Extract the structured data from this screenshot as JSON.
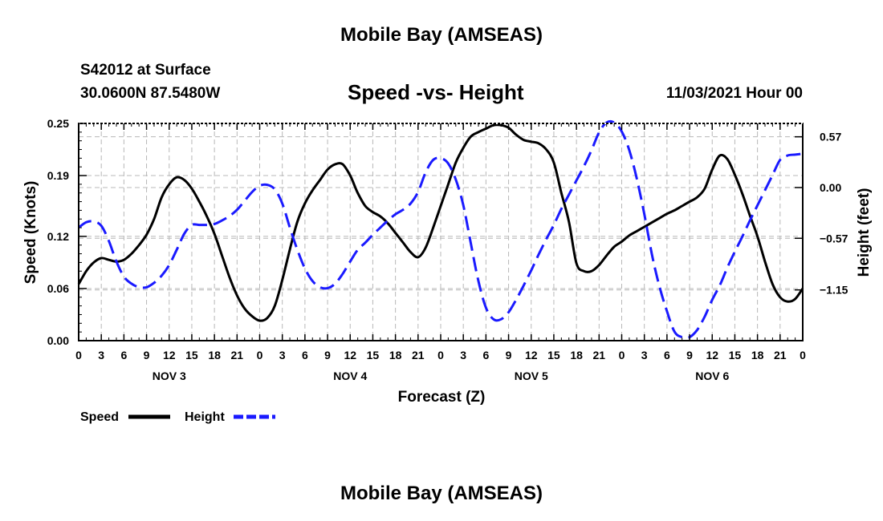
{
  "header": {
    "main_title": "Mobile Bay (AMSEAS)",
    "station": "S42012 at Surface",
    "coords": "30.0600N  87.5480W",
    "subtitle": "Speed -vs- Height",
    "timestamp": "11/03/2021 Hour 00",
    "repeat_title": "Mobile Bay (AMSEAS)"
  },
  "legend": {
    "speed_label": "Speed",
    "height_label": "Height"
  },
  "chart_data": {
    "type": "line",
    "title": "Speed -vs- Height",
    "xlabel": "Forecast (Z)",
    "ylabel_left": "Speed (Knots)",
    "ylabel_right": "Height (feet)",
    "x_hours_range": [
      0,
      96
    ],
    "x_tick_labels": [
      "0",
      "3",
      "6",
      "9",
      "12",
      "15",
      "18",
      "21",
      "0",
      "3",
      "6",
      "9",
      "12",
      "15",
      "18",
      "21",
      "0",
      "3",
      "6",
      "9",
      "12",
      "15",
      "18",
      "21",
      "0",
      "3",
      "6",
      "9",
      "12",
      "15",
      "18",
      "21",
      "0"
    ],
    "day_labels": [
      "NOV 3",
      "NOV 4",
      "NOV 5",
      "NOV 6"
    ],
    "y_left": {
      "ticks": [
        0.0,
        0.06,
        0.12,
        0.19,
        0.25
      ],
      "tick_labels": [
        "0.00",
        "0.06",
        "0.12",
        "0.19",
        "0.25"
      ],
      "range": [
        0.0,
        0.25
      ]
    },
    "y_right": {
      "ticks": [
        -1.15,
        -0.57,
        0.0,
        0.57
      ],
      "tick_labels": [
        "−1.15",
        "−0.57",
        "0.00",
        "0.57"
      ],
      "range": [
        -1.72,
        0.72
      ]
    },
    "grid": true,
    "legend_position": "bottom-left",
    "series": [
      {
        "name": "Speed",
        "axis": "left",
        "color": "#000000",
        "dash": "solid",
        "x": [
          0,
          1,
          2,
          3,
          4,
          5,
          6,
          7,
          8,
          9,
          10,
          11,
          12,
          13,
          14,
          15,
          16,
          17,
          18,
          19,
          20,
          21,
          22,
          23,
          24,
          25,
          26,
          27,
          28,
          29,
          30,
          31,
          32,
          33,
          34,
          35,
          36,
          37,
          38,
          39,
          40,
          41,
          42,
          43,
          44,
          45,
          46,
          47,
          48,
          49,
          50,
          51,
          52,
          53,
          54,
          55,
          56,
          57,
          58,
          59,
          60,
          61,
          62,
          63,
          64,
          65,
          66,
          67,
          68,
          69,
          70,
          71,
          72,
          73,
          74,
          75,
          76,
          77,
          78,
          79,
          80,
          81,
          82,
          83,
          84,
          85,
          86,
          87,
          88,
          89,
          90,
          91,
          92,
          93,
          94,
          95,
          96
        ],
        "y": [
          0.065,
          0.08,
          0.09,
          0.095,
          0.093,
          0.091,
          0.093,
          0.1,
          0.11,
          0.122,
          0.14,
          0.165,
          0.18,
          0.188,
          0.185,
          0.175,
          0.16,
          0.143,
          0.123,
          0.098,
          0.073,
          0.052,
          0.037,
          0.028,
          0.023,
          0.026,
          0.04,
          0.07,
          0.105,
          0.137,
          0.158,
          0.173,
          0.185,
          0.197,
          0.203,
          0.203,
          0.19,
          0.17,
          0.155,
          0.148,
          0.143,
          0.135,
          0.124,
          0.113,
          0.102,
          0.096,
          0.107,
          0.13,
          0.155,
          0.18,
          0.205,
          0.222,
          0.235,
          0.24,
          0.244,
          0.248,
          0.248,
          0.245,
          0.237,
          0.231,
          0.229,
          0.227,
          0.22,
          0.205,
          0.17,
          0.137,
          0.089,
          0.08,
          0.08,
          0.087,
          0.098,
          0.108,
          0.114,
          0.121,
          0.126,
          0.131,
          0.136,
          0.141,
          0.146,
          0.15,
          0.155,
          0.16,
          0.165,
          0.175,
          0.197,
          0.213,
          0.209,
          0.191,
          0.169,
          0.144,
          0.12,
          0.091,
          0.065,
          0.05,
          0.045,
          0.048,
          0.06
        ]
      },
      {
        "name": "Height",
        "axis": "right",
        "color": "#1a1aff",
        "dash": "dashed",
        "x": [
          0,
          1,
          2,
          3,
          4,
          5,
          6,
          7,
          8,
          9,
          10,
          11,
          12,
          13,
          14,
          15,
          16,
          17,
          18,
          19,
          20,
          21,
          22,
          23,
          24,
          25,
          26,
          27,
          28,
          29,
          30,
          31,
          32,
          33,
          34,
          35,
          36,
          37,
          38,
          39,
          40,
          41,
          42,
          43,
          44,
          45,
          46,
          47,
          48,
          49,
          50,
          51,
          52,
          53,
          54,
          55,
          56,
          57,
          58,
          59,
          60,
          61,
          62,
          63,
          64,
          65,
          66,
          67,
          68,
          69,
          70,
          71,
          72,
          73,
          74,
          75,
          76,
          77,
          78,
          79,
          80,
          81,
          82,
          83,
          84,
          85,
          86,
          87,
          88,
          89,
          90,
          91,
          92,
          93,
          94,
          95,
          96
        ],
        "y": [
          -0.45,
          -0.39,
          -0.38,
          -0.43,
          -0.6,
          -0.83,
          -1.0,
          -1.08,
          -1.12,
          -1.12,
          -1.07,
          -0.99,
          -0.87,
          -0.7,
          -0.52,
          -0.42,
          -0.42,
          -0.42,
          -0.41,
          -0.37,
          -0.32,
          -0.25,
          -0.15,
          -0.05,
          0.02,
          0.03,
          -0.02,
          -0.18,
          -0.45,
          -0.7,
          -0.91,
          -1.05,
          -1.12,
          -1.13,
          -1.08,
          -0.97,
          -0.83,
          -0.7,
          -0.62,
          -0.53,
          -0.45,
          -0.37,
          -0.3,
          -0.25,
          -0.18,
          -0.05,
          0.17,
          0.31,
          0.33,
          0.27,
          0.09,
          -0.2,
          -0.63,
          -1.05,
          -1.35,
          -1.48,
          -1.48,
          -1.4,
          -1.26,
          -1.1,
          -0.93,
          -0.75,
          -0.58,
          -0.42,
          -0.24,
          -0.08,
          0.08,
          0.24,
          0.42,
          0.62,
          0.73,
          0.73,
          0.63,
          0.42,
          0.1,
          -0.3,
          -0.75,
          -1.11,
          -1.39,
          -1.62,
          -1.68,
          -1.68,
          -1.6,
          -1.45,
          -1.26,
          -1.1,
          -0.9,
          -0.72,
          -0.55,
          -0.37,
          -0.2,
          -0.03,
          0.14,
          0.31,
          0.36,
          0.37,
          0.38
        ]
      }
    ]
  }
}
